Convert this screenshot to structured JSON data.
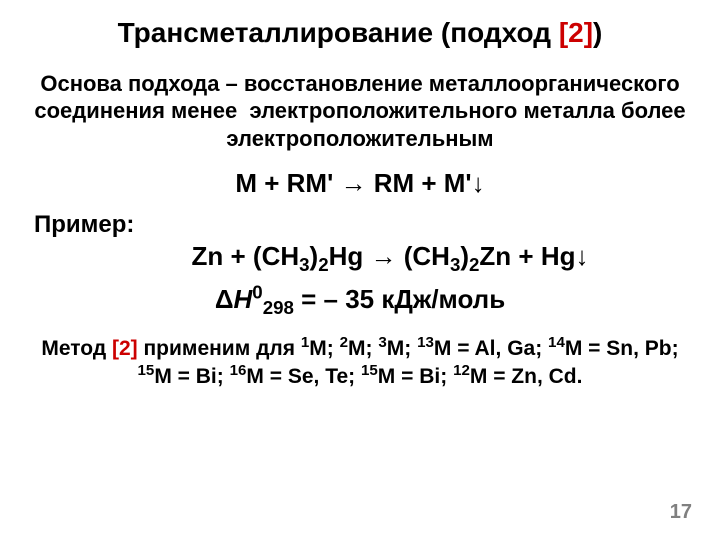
{
  "title": {
    "left": "Трансметаллирование (подход ",
    "ref": "[2]",
    "right": ")"
  },
  "intro": "Основа подхода – восстановление металлоорганического соединения менее &nbsp;электроположительного металла более электроположительным",
  "eq1": "M + RM' &rarr; RM + M'&darr;",
  "example_label": "Пример:",
  "eq2": "Zn + (CH<sub>3</sub>)<sub>2</sub>Hg &rarr; (CH<sub>3</sub>)<sub>2</sub>Zn + Hg&darr;",
  "eq3": "&Delta;<i>H</i><sup>0</sup><sub>298</sub> = – 35 кДж/моль",
  "method": {
    "t1": "Метод ",
    "ref": "[2]",
    "t2": " применим для <sup>1</sup>M; <sup>2</sup>M; <sup>3</sup>M; <sup>13</sup>M = Al, Ga; <sup>14</sup>M = Sn, Pb; <sup>15</sup>М = Bi; <sup>16</sup>М = Se, Te; <sup>15</sup>M = Bi; <sup>12</sup>M = Zn, Cd."
  },
  "page": "17",
  "colors": {
    "ref": "#cc0000",
    "pagenum": "#808080",
    "text": "#000000",
    "bg": "#ffffff"
  },
  "fontsizes": {
    "title": 28,
    "intro": 22,
    "eq": 26,
    "label": 24,
    "method": 21,
    "pagenum": 20
  }
}
